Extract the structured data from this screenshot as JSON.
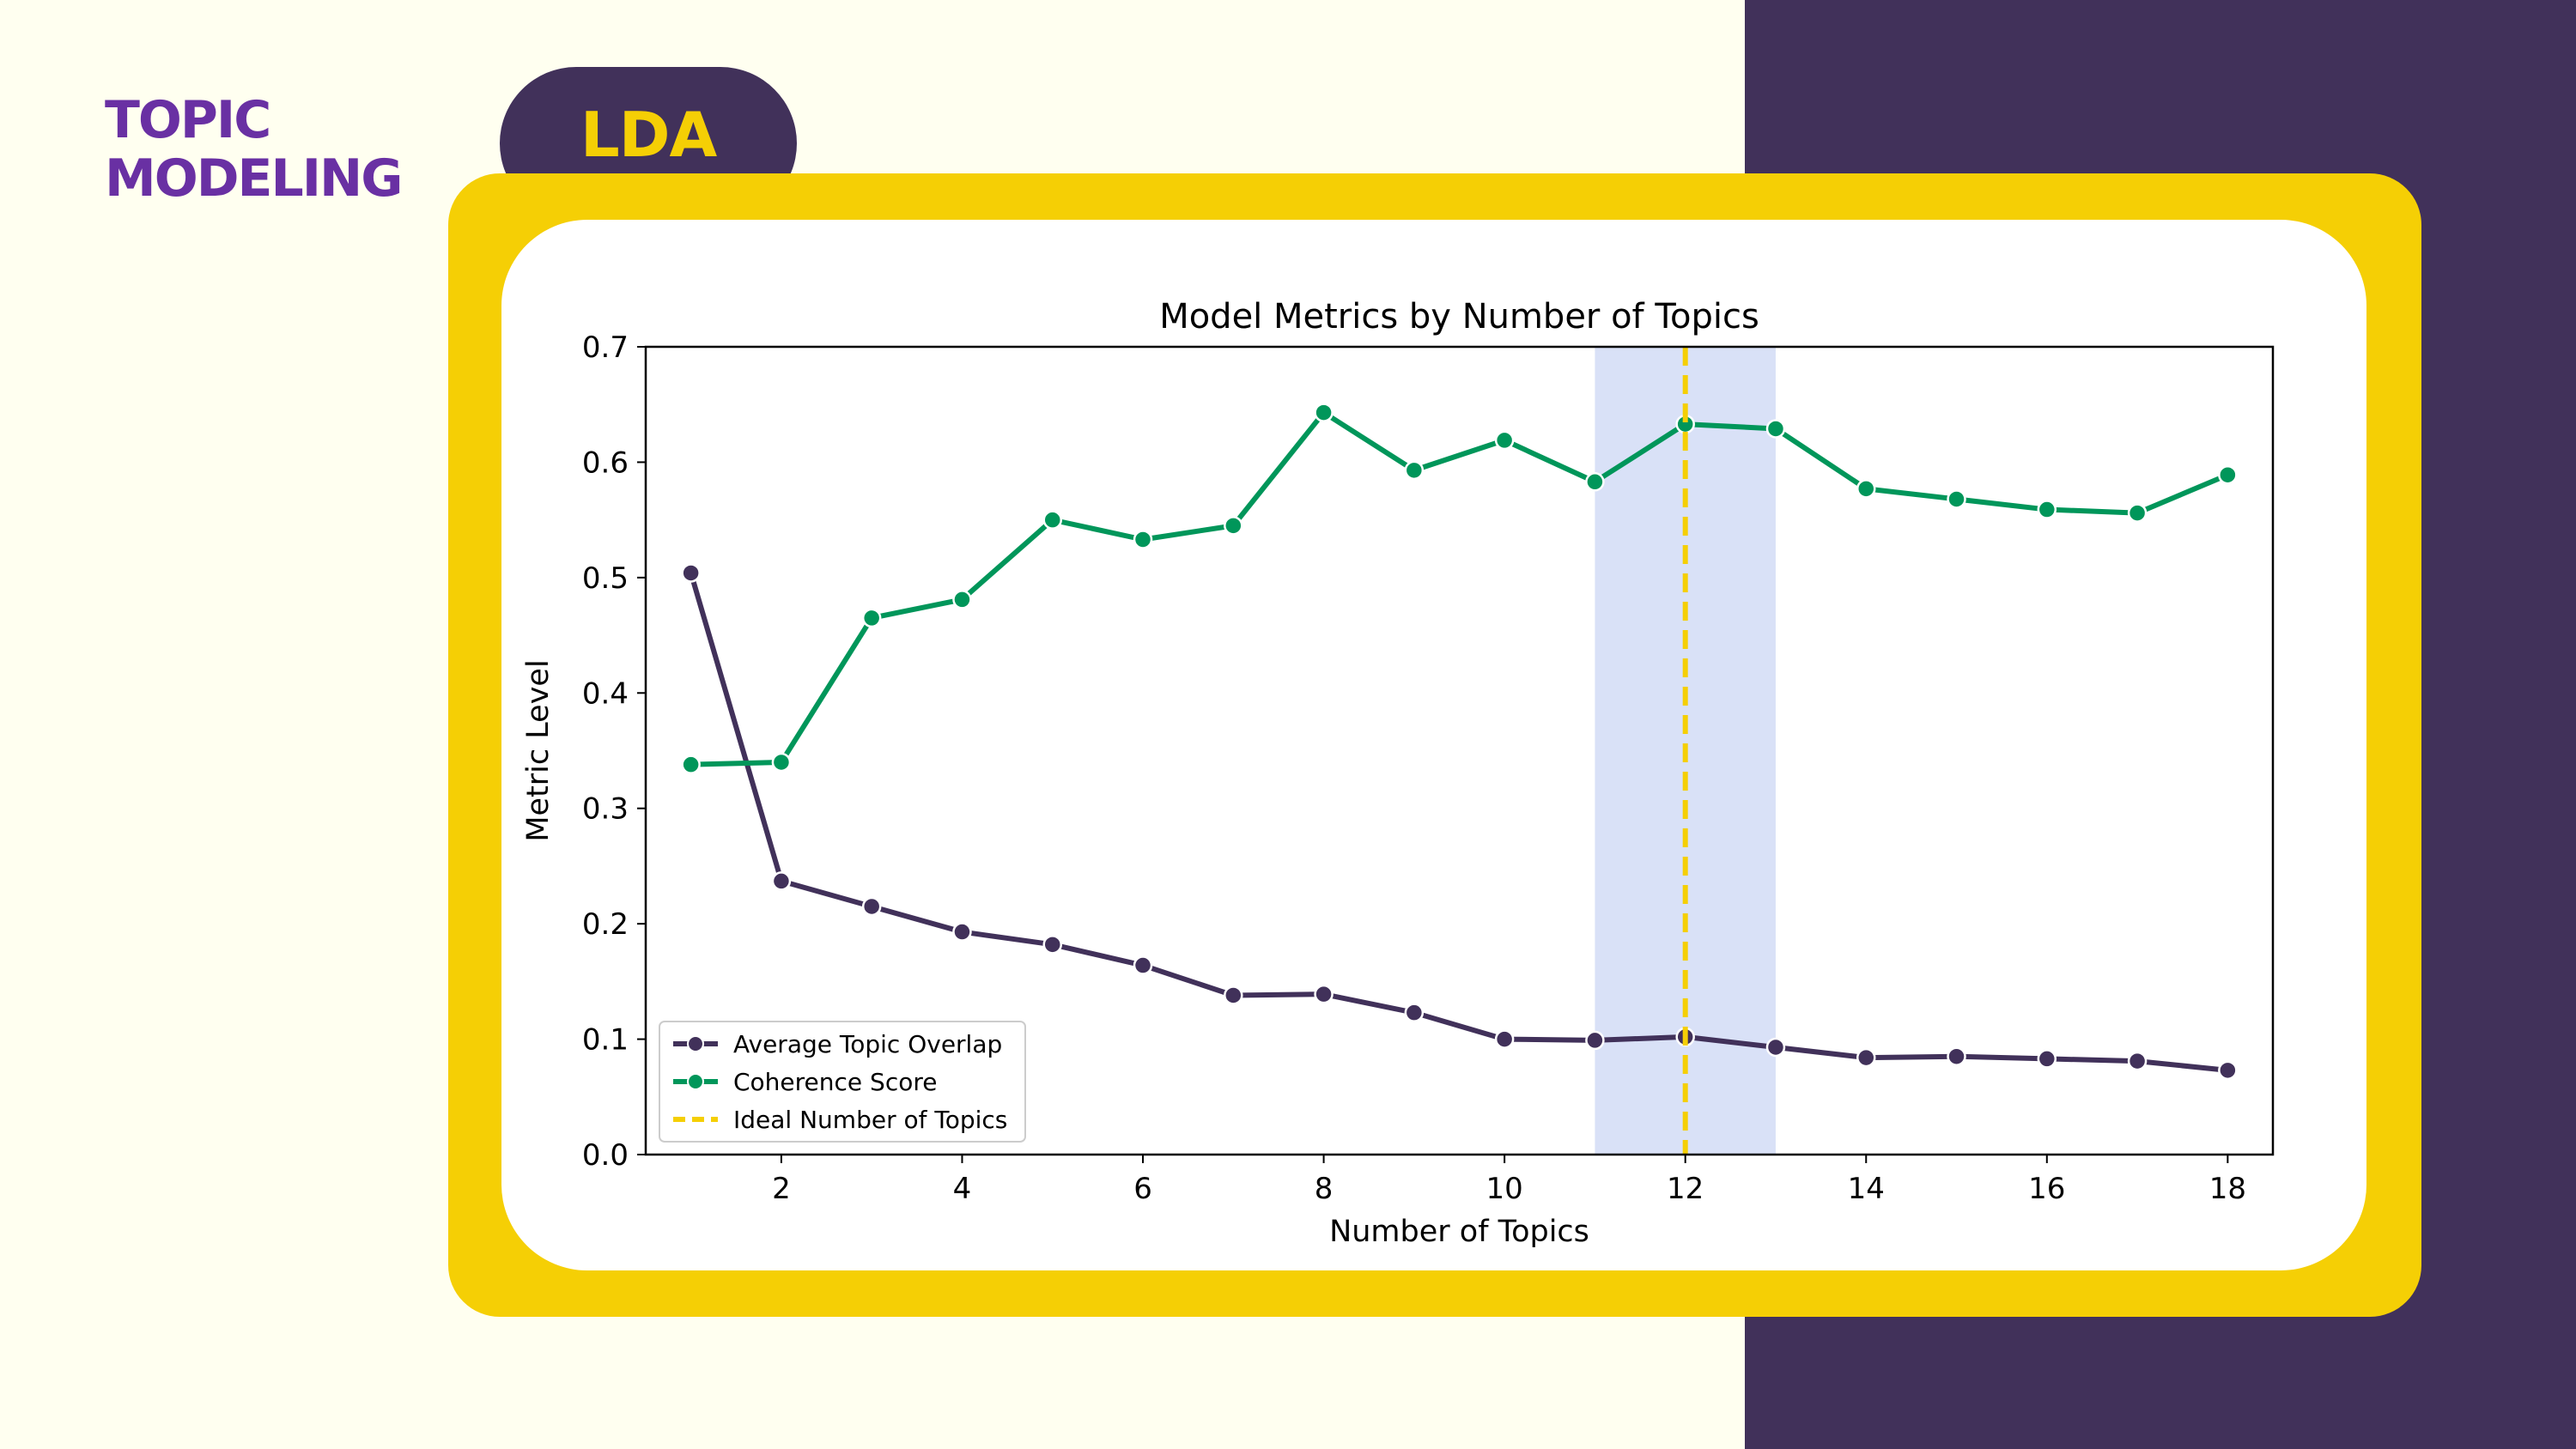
{
  "header": {
    "title_lines": [
      "TOPIC",
      "MODELING"
    ],
    "method_label": "LDA"
  },
  "colors": {
    "background": "#fffff0",
    "panel": "#41315a",
    "frame": "#f5cf05",
    "title": "#6930a3",
    "overlap_series": "#41315a",
    "coherence_series": "#00965a",
    "ideal_line": "#f5cf05",
    "highlight_band": "#d9e1f7"
  },
  "chart_data": {
    "type": "line",
    "title": "Model Metrics by Number of Topics",
    "xlabel": "Number of Topics",
    "ylabel": "Metric Level",
    "xlim": [
      0.5,
      18.5
    ],
    "ylim": [
      0.0,
      0.7
    ],
    "xticks": [
      2,
      4,
      6,
      8,
      10,
      12,
      14,
      16,
      18
    ],
    "yticks": [
      0.0,
      0.1,
      0.2,
      0.3,
      0.4,
      0.5,
      0.6,
      0.7
    ],
    "grid": false,
    "legend_position": "lower-left",
    "x": [
      1,
      2,
      3,
      4,
      5,
      6,
      7,
      8,
      9,
      10,
      11,
      12,
      13,
      14,
      15,
      16,
      17,
      18
    ],
    "series": [
      {
        "name": "Average Topic Overlap",
        "color": "#41315a",
        "values": [
          0.504,
          0.237,
          0.215,
          0.193,
          0.182,
          0.164,
          0.138,
          0.139,
          0.123,
          0.1,
          0.099,
          0.102,
          0.093,
          0.084,
          0.085,
          0.083,
          0.081,
          0.073
        ]
      },
      {
        "name": "Coherence Score",
        "color": "#00965a",
        "values": [
          0.338,
          0.34,
          0.465,
          0.481,
          0.55,
          0.533,
          0.545,
          0.643,
          0.593,
          0.619,
          0.583,
          0.633,
          0.629,
          0.577,
          0.568,
          0.559,
          0.556,
          0.589
        ]
      }
    ],
    "ideal_line": {
      "name": "Ideal Number of Topics",
      "x": 12,
      "color": "#f5cf05"
    },
    "highlight_band": {
      "x_start": 11,
      "x_end": 13,
      "color": "#d9e1f7"
    }
  }
}
